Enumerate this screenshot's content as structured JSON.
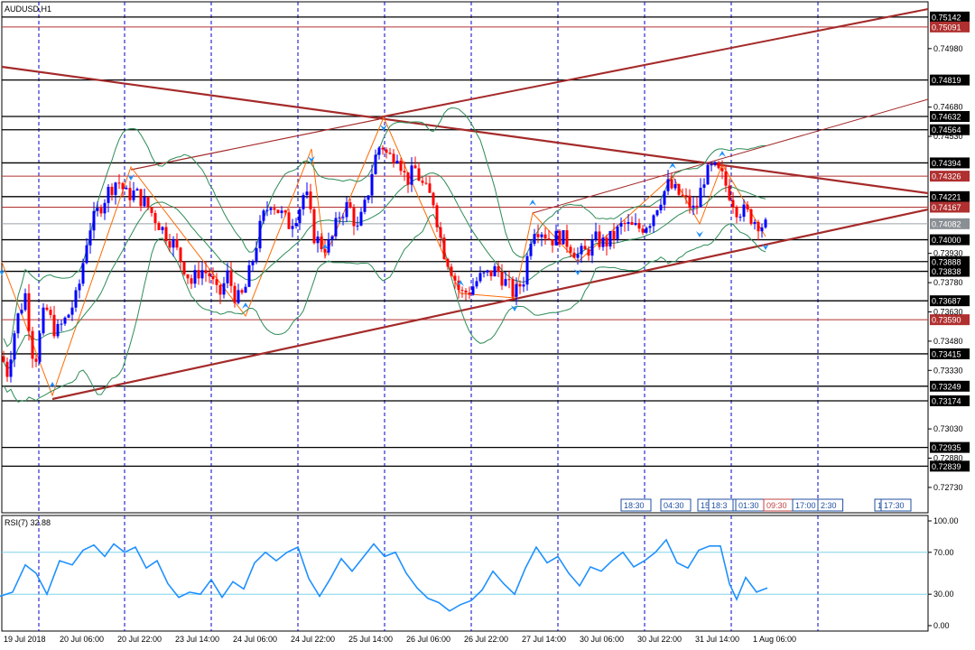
{
  "window": {
    "symbol_title": "AUDUSD,H1"
  },
  "indicator": {
    "title": "RSI(7) 32.88"
  },
  "colors": {
    "bull": "#0000ff",
    "bear": "#ff0000",
    "trend": "#a52a2a",
    "band": "#2e8b57",
    "rsi": "#1e90ff",
    "rsi_level": "#7fd4e8",
    "grid_v": "#0000cc",
    "level_black": "#000000",
    "level_red": "#b03030"
  },
  "chart_data": [
    {
      "type": "candlestick",
      "title": "AUDUSD,H1",
      "ylim": [
        0.726,
        0.7522
      ],
      "price_axis_ticks": [
        "0.74980",
        "0.74680",
        "0.74530",
        "0.73930",
        "0.73780",
        "0.73630",
        "0.73480",
        "0.73330",
        "0.73030",
        "0.72880",
        "0.72730"
      ],
      "horizontal_levels": [
        {
          "price": 0.75142,
          "label": "0.75142",
          "style": "black"
        },
        {
          "price": 0.75091,
          "label": "0.75091",
          "style": "red"
        },
        {
          "price": 0.74819,
          "label": "0.74819",
          "style": "black"
        },
        {
          "price": 0.74632,
          "label": "0.74632",
          "style": "black"
        },
        {
          "price": 0.74564,
          "label": "0.74564",
          "style": "black"
        },
        {
          "price": 0.74394,
          "label": "0.74394",
          "style": "black"
        },
        {
          "price": 0.74326,
          "label": "0.74326",
          "style": "red"
        },
        {
          "price": 0.74221,
          "label": "0.74221",
          "style": "black"
        },
        {
          "price": 0.74167,
          "label": "0.74167",
          "style": "red"
        },
        {
          "price": 0.74082,
          "label": "0.74082",
          "style": "gray"
        },
        {
          "price": 0.74,
          "label": "0.74000",
          "style": "black"
        },
        {
          "price": 0.73888,
          "label": "0.73888",
          "style": "black"
        },
        {
          "price": 0.73838,
          "label": "0.73838",
          "style": "black"
        },
        {
          "price": 0.73687,
          "label": "0.73687",
          "style": "black"
        },
        {
          "price": 0.7359,
          "label": "0.73590",
          "style": "red"
        },
        {
          "price": 0.73415,
          "label": "0.73415",
          "style": "black"
        },
        {
          "price": 0.73249,
          "label": "0.73249",
          "style": "black"
        },
        {
          "price": 0.73174,
          "label": "0.73174",
          "style": "black"
        },
        {
          "price": 0.72935,
          "label": "0.72935",
          "style": "black"
        },
        {
          "price": 0.72839,
          "label": "0.72839",
          "style": "black"
        }
      ],
      "close_path_points": [
        [
          0,
          0.7343
        ],
        [
          8,
          0.7332
        ],
        [
          18,
          0.7358
        ],
        [
          28,
          0.7372
        ],
        [
          38,
          0.7335
        ],
        [
          50,
          0.7366
        ],
        [
          62,
          0.7352
        ],
        [
          74,
          0.736
        ],
        [
          86,
          0.7372
        ],
        [
          98,
          0.7405
        ],
        [
          110,
          0.7416
        ],
        [
          120,
          0.7425
        ],
        [
          130,
          0.7431
        ],
        [
          140,
          0.7423
        ],
        [
          150,
          0.7424
        ],
        [
          162,
          0.7418
        ],
        [
          172,
          0.7411
        ],
        [
          182,
          0.7404
        ],
        [
          192,
          0.7398
        ],
        [
          202,
          0.7388
        ],
        [
          212,
          0.7378
        ],
        [
          222,
          0.7385
        ],
        [
          232,
          0.7382
        ],
        [
          242,
          0.737
        ],
        [
          252,
          0.7382
        ],
        [
          262,
          0.7369
        ],
        [
          270,
          0.7372
        ],
        [
          280,
          0.739
        ],
        [
          290,
          0.741
        ],
        [
          300,
          0.742
        ],
        [
          310,
          0.7414
        ],
        [
          320,
          0.7408
        ],
        [
          330,
          0.7414
        ],
        [
          338,
          0.7426
        ],
        [
          348,
          0.7402
        ],
        [
          358,
          0.7396
        ],
        [
          366,
          0.7398
        ],
        [
          376,
          0.7413
        ],
        [
          386,
          0.7418
        ],
        [
          396,
          0.7405
        ],
        [
          406,
          0.742
        ],
        [
          414,
          0.744
        ],
        [
          422,
          0.745
        ],
        [
          430,
          0.7442
        ],
        [
          440,
          0.7445
        ],
        [
          450,
          0.743
        ],
        [
          460,
          0.7436
        ],
        [
          470,
          0.7426
        ],
        [
          480,
          0.742
        ],
        [
          490,
          0.7396
        ],
        [
          500,
          0.7385
        ],
        [
          510,
          0.7372
        ],
        [
          520,
          0.7374
        ],
        [
          530,
          0.738
        ],
        [
          540,
          0.7382
        ],
        [
          550,
          0.7385
        ],
        [
          560,
          0.7378
        ],
        [
          570,
          0.7372
        ],
        [
          580,
          0.738
        ],
        [
          590,
          0.7407
        ],
        [
          600,
          0.7405
        ],
        [
          610,
          0.74
        ],
        [
          620,
          0.7402
        ],
        [
          630,
          0.7398
        ],
        [
          640,
          0.7392
        ],
        [
          650,
          0.7394
        ],
        [
          660,
          0.74
        ],
        [
          670,
          0.7398
        ],
        [
          680,
          0.7402
        ],
        [
          690,
          0.7408
        ],
        [
          700,
          0.7406
        ],
        [
          710,
          0.7406
        ],
        [
          720,
          0.741
        ],
        [
          730,
          0.742
        ],
        [
          740,
          0.7428
        ],
        [
          750,
          0.7424
        ],
        [
          760,
          0.742
        ],
        [
          770,
          0.7414
        ],
        [
          780,
          0.7432
        ],
        [
          790,
          0.7437
        ],
        [
          800,
          0.7432
        ],
        [
          808,
          0.7424
        ],
        [
          816,
          0.7416
        ],
        [
          826,
          0.7414
        ],
        [
          836,
          0.741
        ],
        [
          846,
          0.7407
        ]
      ],
      "rsi_panel": {
        "ylim": [
          0,
          100
        ],
        "levels": [
          30,
          70
        ],
        "tick_labels": [
          "100.00",
          "70.00",
          "30.00",
          "0.00"
        ],
        "points": [
          [
            0,
            28
          ],
          [
            14,
            32
          ],
          [
            28,
            58
          ],
          [
            40,
            50
          ],
          [
            52,
            30
          ],
          [
            66,
            62
          ],
          [
            80,
            58
          ],
          [
            92,
            72
          ],
          [
            104,
            77
          ],
          [
            116,
            66
          ],
          [
            126,
            78
          ],
          [
            138,
            70
          ],
          [
            150,
            75
          ],
          [
            162,
            55
          ],
          [
            174,
            62
          ],
          [
            186,
            40
          ],
          [
            198,
            27
          ],
          [
            210,
            32
          ],
          [
            222,
            30
          ],
          [
            234,
            44
          ],
          [
            246,
            27
          ],
          [
            258,
            42
          ],
          [
            270,
            35
          ],
          [
            282,
            60
          ],
          [
            294,
            70
          ],
          [
            306,
            62
          ],
          [
            318,
            70
          ],
          [
            330,
            75
          ],
          [
            342,
            45
          ],
          [
            354,
            28
          ],
          [
            366,
            45
          ],
          [
            378,
            64
          ],
          [
            390,
            52
          ],
          [
            402,
            65
          ],
          [
            414,
            78
          ],
          [
            426,
            66
          ],
          [
            438,
            70
          ],
          [
            450,
            50
          ],
          [
            462,
            36
          ],
          [
            474,
            26
          ],
          [
            486,
            22
          ],
          [
            498,
            14
          ],
          [
            510,
            20
          ],
          [
            522,
            24
          ],
          [
            534,
            34
          ],
          [
            546,
            52
          ],
          [
            558,
            40
          ],
          [
            570,
            30
          ],
          [
            582,
            55
          ],
          [
            594,
            75
          ],
          [
            606,
            60
          ],
          [
            618,
            66
          ],
          [
            630,
            50
          ],
          [
            642,
            38
          ],
          [
            654,
            56
          ],
          [
            666,
            52
          ],
          [
            678,
            62
          ],
          [
            690,
            70
          ],
          [
            702,
            56
          ],
          [
            714,
            62
          ],
          [
            726,
            70
          ],
          [
            738,
            82
          ],
          [
            750,
            60
          ],
          [
            762,
            55
          ],
          [
            774,
            72
          ],
          [
            786,
            76
          ],
          [
            798,
            76
          ],
          [
            808,
            40
          ],
          [
            816,
            25
          ],
          [
            826,
            46
          ],
          [
            838,
            32
          ],
          [
            850,
            36
          ]
        ]
      },
      "time_labels": [
        "19 Jul 2018",
        "20 Jul 06:00",
        "20 Jul 22:00",
        "23 Jul 14:00",
        "24 Jul 06:00",
        "24 Jul 22:00",
        "25 Jul 14:00",
        "26 Jul 06:00",
        "26 Jul 22:00",
        "27 Jul 14:00",
        "30 Jul 06:00",
        "30 Jul 22:00",
        "31 Jul 14:00",
        "1 Aug 06:00"
      ],
      "event_markers": [
        "18:30",
        "04:30",
        "15",
        "18:3",
        "2",
        "01:30",
        "09:30",
        "17:00",
        "2:30",
        "1",
        "17:30"
      ]
    }
  ]
}
